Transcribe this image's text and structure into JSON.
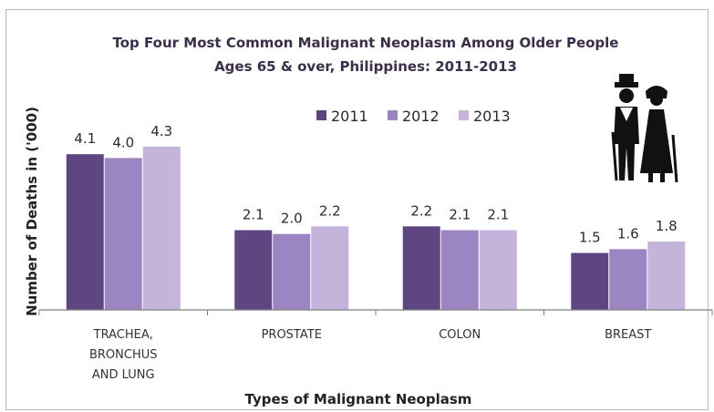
{
  "chart_data": {
    "type": "bar",
    "title": "Top Four Most Common Malignant  Neoplasm Among Older People",
    "subtitle": "Ages 65 & over, Philippines: 2011-2013",
    "xlabel": "Types of Malignant  Neoplasm",
    "ylabel": "Number of Deaths in ('000)",
    "categories": [
      [
        "TRACHEA,",
        "BRONCHUS",
        "AND LUNG"
      ],
      [
        "PROSTATE"
      ],
      [
        "COLON"
      ],
      [
        "BREAST"
      ]
    ],
    "series": [
      {
        "name": "2011",
        "values": [
          4.1,
          2.1,
          2.2,
          1.5
        ],
        "labels": [
          "4.1",
          "2.1",
          "2.2",
          "1.5"
        ],
        "color": "#5e4780"
      },
      {
        "name": "2012",
        "values": [
          4.0,
          2.0,
          2.1,
          1.6
        ],
        "labels": [
          "4.0",
          "2.0",
          "2.1",
          "1.6"
        ],
        "color": "#9b85c2"
      },
      {
        "name": "2013",
        "values": [
          4.3,
          2.2,
          2.1,
          1.8
        ],
        "labels": [
          "4.3",
          "2.2",
          "2.1",
          "1.8"
        ],
        "color": "#c4b4dc"
      }
    ],
    "ylim": [
      0,
      6
    ],
    "legend_position": "top-center",
    "grid": false,
    "decoration": "elderly-couple-icon"
  }
}
